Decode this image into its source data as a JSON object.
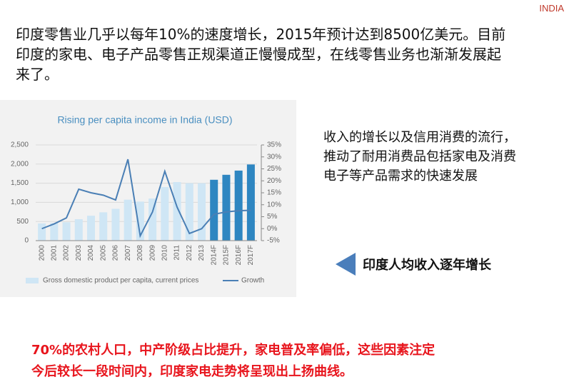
{
  "header": {
    "tag": "INDIA",
    "lines": [
      "印度零售业几乎以每年10%的速度增长，2015年预计达到8500亿美元。目前",
      "印度的家电、电子产品零售正规渠道正慢慢成型，在线零售业务也渐渐发展起",
      "来了。"
    ]
  },
  "chart_data": {
    "type": "bar_line",
    "title": "Rising per capita income in India (USD)",
    "categories": [
      "2000",
      "2001",
      "2002",
      "2003",
      "2004",
      "2005",
      "2006",
      "2007",
      "2008",
      "2009",
      "2010",
      "2011",
      "2012",
      "2013",
      "2014F",
      "2015F",
      "2016F",
      "2017F"
    ],
    "series": [
      {
        "name": "Gross domestic product per capita, current prices",
        "type": "bar",
        "color": "#cfe6f5",
        "colors": [
          "#cfe6f5",
          "#cfe6f5",
          "#cfe6f5",
          "#cfe6f5",
          "#cfe6f5",
          "#cfe6f5",
          "#cfe6f5",
          "#cfe6f5",
          "#cfe6f5",
          "#cfe6f5",
          "#cfe6f5",
          "#cfe6f5",
          "#cfe6f5",
          "#cfe6f5",
          "#2e86c1",
          "#2e86c1",
          "#2e86c1",
          "#2e86c1"
        ],
        "values": [
          450,
          460,
          480,
          560,
          650,
          740,
          830,
          1070,
          1020,
          1100,
          1400,
          1530,
          1500,
          1500,
          1590,
          1720,
          1830,
          1990
        ]
      },
      {
        "name": "Growth",
        "type": "line",
        "axis": "y2",
        "color": "#4a7fb5",
        "values": [
          0,
          2,
          4.5,
          16.5,
          15,
          14,
          12,
          29,
          -3,
          7,
          24,
          9,
          -2,
          0,
          6,
          7,
          7.5,
          7.7
        ]
      }
    ],
    "ylim": [
      0,
      2500
    ],
    "yticks": [
      0,
      500,
      {
        "value": 1000,
        "label": "1,000"
      },
      {
        "value": 1500,
        "label": "1,500"
      },
      {
        "value": 2000,
        "label": "2,000"
      },
      {
        "value": 2500,
        "label": "2,500"
      }
    ],
    "y2lim": [
      -5,
      35
    ],
    "y2ticks": [
      {
        "value": -5,
        "label": "-5%"
      },
      {
        "value": 0,
        "label": "0%"
      },
      {
        "value": 5,
        "label": "5%"
      },
      {
        "value": 10,
        "label": "10%"
      },
      {
        "value": 15,
        "label": "15%"
      },
      {
        "value": 20,
        "label": "20%"
      },
      {
        "value": 25,
        "label": "25%"
      },
      {
        "value": 30,
        "label": "30%"
      },
      {
        "value": 35,
        "label": "35%"
      }
    ],
    "grid": true
  },
  "side_text": {
    "lines": [
      "收入的增长以及信用消费的流行，",
      "推动了耐用消费品包括家电及消费",
      "电子等产品需求的快速发展"
    ]
  },
  "callout": "印度人均收入逐年增长",
  "footer": {
    "lines": [
      "70%的农村人口，中产阶级占比提升，家电普及率偏低，这些因素注定",
      "今后较长一段时间内，印度家电走势将呈现出上扬曲线。"
    ]
  }
}
